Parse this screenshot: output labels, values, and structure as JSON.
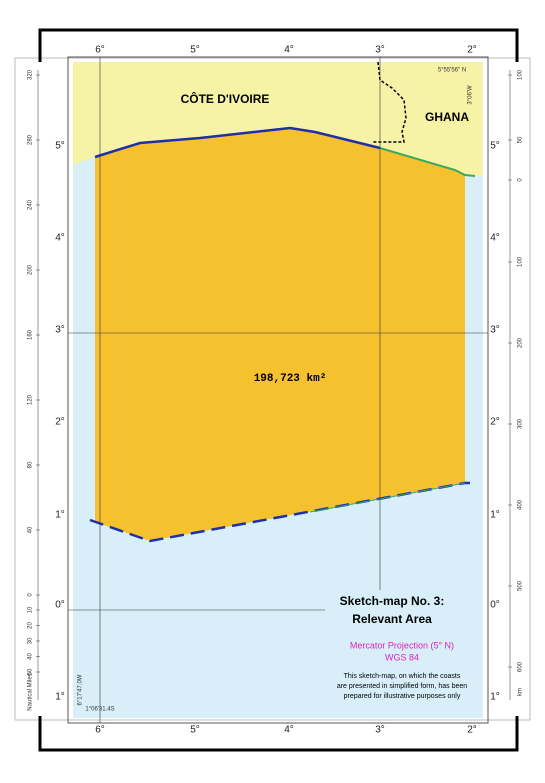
{
  "map": {
    "countries": [
      "CÔTE D'IVOIRE",
      "GHANA"
    ],
    "area_label": "198,723 km²",
    "longitudes": [
      "6°",
      "5°",
      "4°",
      "3°",
      "2°"
    ],
    "latitudes": [
      "5°",
      "4°",
      "3°",
      "2°",
      "1°",
      "0°",
      "1°"
    ],
    "nautical_miles_label": "Nautical Miles",
    "nautical_miles_ticks": [
      320,
      280,
      240,
      200,
      160,
      120,
      80,
      40,
      0
    ],
    "nautical_miles_ticks_south": [
      10,
      20,
      30,
      40,
      50
    ],
    "km_label": "km",
    "km_ticks_north": [
      100,
      50,
      0
    ],
    "km_ticks": [
      100,
      200,
      300,
      400,
      500,
      600
    ],
    "coordinate_notes": [
      "5°55'56\" N",
      "3°06'W",
      "6°17'47.0W",
      "1°06'31.4S"
    ],
    "legend": {
      "title": "Sketch-map No. 3:",
      "subtitle": "Relevant Area",
      "projection": "Mercator Projection (5° N)",
      "datum": "WGS 84",
      "note_lines": [
        "This sketch-map, on which the coasts",
        "are presented in simplified form, has been",
        "prepared for illustrative purposes only"
      ]
    }
  }
}
